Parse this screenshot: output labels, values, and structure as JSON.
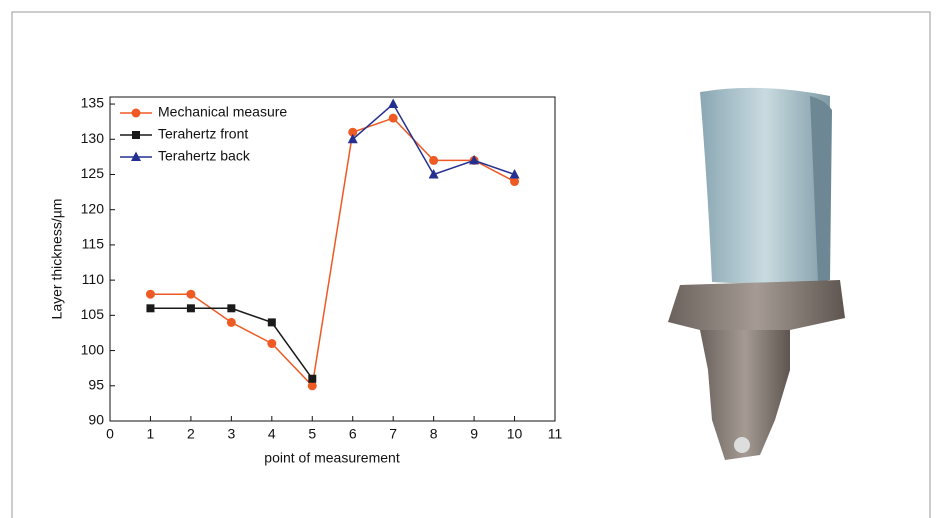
{
  "chart_data": {
    "type": "line",
    "x_label": "point of measurement",
    "y_label": "Layer thickness/µm",
    "x": [
      1,
      2,
      3,
      4,
      5,
      6,
      7,
      8,
      9,
      10
    ],
    "series": [
      {
        "name": "Mechanical measure",
        "color": "#ee5a24",
        "marker": "circle",
        "values": [
          108,
          108,
          104,
          101,
          95,
          131,
          133,
          127,
          127,
          124
        ]
      },
      {
        "name": "Terahertz front",
        "color": "#1a1a1a",
        "marker": "square",
        "values": [
          106,
          106,
          106,
          104,
          96,
          null,
          null,
          null,
          null,
          null
        ]
      },
      {
        "name": "Terahertz back",
        "color": "#23308f",
        "marker": "triangle",
        "values": [
          null,
          null,
          null,
          null,
          null,
          130,
          135,
          125,
          127,
          125
        ]
      }
    ],
    "xlim": [
      0,
      11
    ],
    "xticks": [
      0,
      1,
      2,
      3,
      4,
      5,
      6,
      7,
      8,
      9,
      10,
      11
    ],
    "ylim": [
      90,
      136
    ],
    "yticks": [
      90,
      95,
      100,
      105,
      110,
      115,
      120,
      125,
      130,
      135
    ],
    "legend": "upper left"
  }
}
